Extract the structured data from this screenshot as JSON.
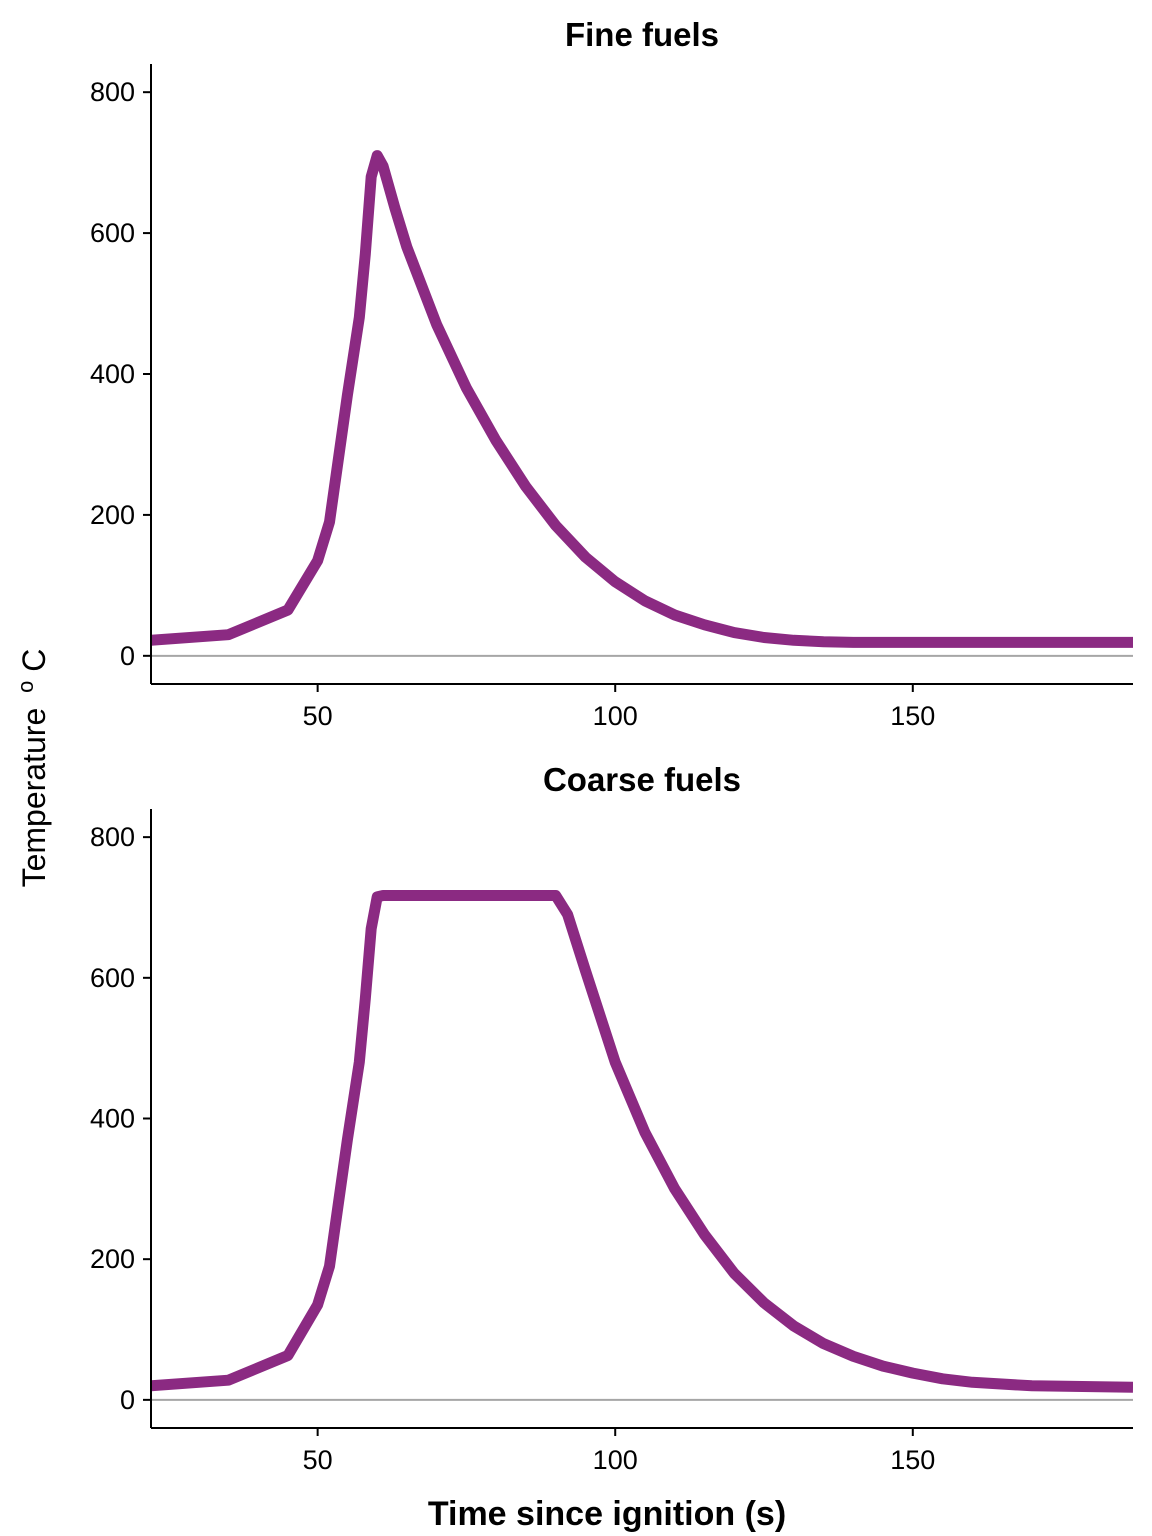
{
  "figure": {
    "ylabel": "Temperature",
    "ylabel_sup": "o",
    "ylabel_unit": "C",
    "xlabel": "Time since ignition (s)"
  },
  "colors": {
    "series": "#8B2A82",
    "zero_line": "#a6a6a6",
    "axis": "#000000"
  },
  "chart_data": [
    {
      "type": "line",
      "title": "Fine fuels",
      "xlim": [
        22,
        187
      ],
      "ylim": [
        -40,
        840
      ],
      "xticks": [
        50,
        100,
        150
      ],
      "yticks": [
        0,
        200,
        400,
        600,
        800
      ],
      "grid": false,
      "hline": 0,
      "series": [
        {
          "x": [
            22,
            35,
            45,
            50,
            52,
            55,
            57,
            58,
            59,
            60,
            61,
            63,
            65,
            70,
            75,
            80,
            85,
            90,
            95,
            100,
            105,
            110,
            115,
            120,
            125,
            130,
            135,
            140,
            150,
            160,
            170,
            187
          ],
          "y": [
            22,
            30,
            65,
            135,
            190,
            370,
            480,
            570,
            680,
            710,
            695,
            635,
            580,
            470,
            380,
            305,
            240,
            185,
            140,
            105,
            78,
            58,
            44,
            33,
            26,
            22,
            20,
            19,
            19,
            19,
            19,
            19
          ]
        }
      ]
    },
    {
      "type": "line",
      "title": "Coarse fuels",
      "xlim": [
        22,
        187
      ],
      "ylim": [
        -40,
        840
      ],
      "xticks": [
        50,
        100,
        150
      ],
      "yticks": [
        0,
        200,
        400,
        600,
        800
      ],
      "grid": false,
      "hline": 0,
      "series": [
        {
          "x": [
            22,
            35,
            45,
            50,
            52,
            55,
            57,
            58,
            59,
            60,
            61,
            65,
            70,
            80,
            90,
            92,
            95,
            100,
            105,
            110,
            115,
            120,
            125,
            130,
            135,
            140,
            145,
            150,
            155,
            160,
            170,
            187
          ],
          "y": [
            20,
            28,
            63,
            135,
            190,
            370,
            480,
            570,
            670,
            715,
            717,
            717,
            717,
            717,
            717,
            690,
            610,
            480,
            380,
            300,
            235,
            180,
            138,
            105,
            80,
            62,
            48,
            38,
            30,
            25,
            20,
            18
          ]
        }
      ]
    }
  ]
}
